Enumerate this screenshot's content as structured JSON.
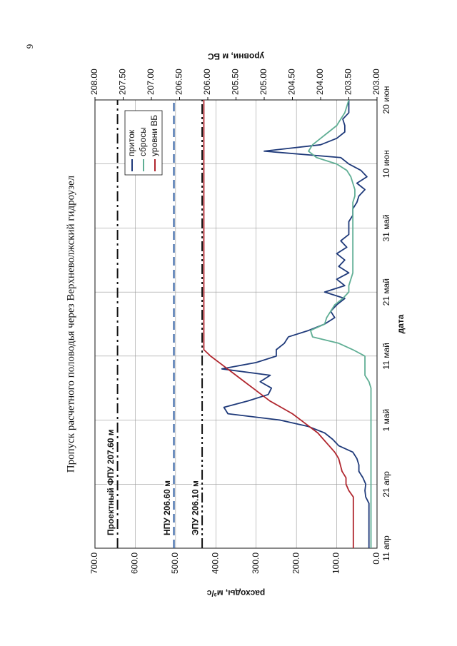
{
  "page_number": "9",
  "chart_data": {
    "type": "line",
    "title": "Пропуск расчетного половодья через Верхневолжский гидроузел",
    "x_label": "дата",
    "y_label": "расходы, м³/с",
    "y2_label": "уровни, м БС",
    "xlim": [
      0,
      70
    ],
    "xticks": [
      {
        "value": 0,
        "label": "11 апр"
      },
      {
        "value": 10,
        "label": "21 апр"
      },
      {
        "value": 20,
        "label": "1 май"
      },
      {
        "value": 30,
        "label": "11 май"
      },
      {
        "value": 40,
        "label": "21 май"
      },
      {
        "value": 50,
        "label": "31 май"
      },
      {
        "value": 60,
        "label": "10 июн"
      },
      {
        "value": 70,
        "label": "20 июн"
      }
    ],
    "ylim": [
      0,
      700
    ],
    "yticks": [
      {
        "value": 0,
        "label": "0.0"
      },
      {
        "value": 100,
        "label": "100.0"
      },
      {
        "value": 200,
        "label": "200.0"
      },
      {
        "value": 300,
        "label": "300.0"
      },
      {
        "value": 400,
        "label": "400.0"
      },
      {
        "value": 500,
        "label": "500.0"
      },
      {
        "value": 600,
        "label": "600.0"
      },
      {
        "value": 700,
        "label": "700.0"
      }
    ],
    "y2lim": [
      203,
      208
    ],
    "y2ticks": [
      {
        "value": 203,
        "label": "203.00"
      },
      {
        "value": 203.5,
        "label": "203.50"
      },
      {
        "value": 204,
        "label": "204.00"
      },
      {
        "value": 204.5,
        "label": "204.50"
      },
      {
        "value": 205,
        "label": "205.00"
      },
      {
        "value": 205.5,
        "label": "205.50"
      },
      {
        "value": 206,
        "label": "206.00"
      },
      {
        "value": 206.5,
        "label": "206.50"
      },
      {
        "value": 207,
        "label": "207.00"
      },
      {
        "value": 207.5,
        "label": "207.50"
      },
      {
        "value": 208,
        "label": "208.00"
      }
    ],
    "grid": true,
    "legend": "upper right",
    "series": [
      {
        "name": "приток",
        "color": "#1f3a7a",
        "x": [
          0,
          7,
          8,
          9,
          10,
          11,
          12,
          13,
          14,
          15,
          16,
          17,
          18,
          19,
          20,
          21,
          22,
          23,
          24,
          25,
          26,
          27,
          28,
          29,
          30,
          31,
          32,
          33,
          34,
          35,
          36,
          37,
          38,
          39,
          40,
          41,
          42,
          43,
          44,
          45,
          46,
          47,
          48,
          49,
          50,
          51,
          52,
          53,
          54,
          55,
          56,
          57,
          58,
          59,
          60,
          61,
          62,
          63,
          64,
          65,
          66,
          67,
          68,
          69,
          70
        ],
        "values": [
          20,
          20,
          28,
          30,
          28,
          35,
          45,
          45,
          50,
          60,
          95,
          110,
          130,
          170,
          240,
          370,
          380,
          320,
          270,
          262,
          290,
          265,
          385,
          300,
          250,
          250,
          230,
          220,
          170,
          130,
          105,
          115,
          100,
          80,
          130,
          80,
          100,
          70,
          95,
          80,
          100,
          75,
          90,
          70,
          70,
          70,
          60,
          60,
          50,
          45,
          30,
          50,
          25,
          40,
          70,
          90,
          280,
          140,
          100,
          80,
          80,
          85,
          70,
          70,
          70
        ]
      },
      {
        "name": "сбросы",
        "color": "#5fae94",
        "x": [
          0,
          25,
          26,
          27,
          28,
          29,
          30,
          31,
          32,
          33,
          34,
          35,
          36,
          37,
          38,
          39,
          40,
          41,
          42,
          43,
          44,
          45,
          46,
          47,
          48,
          49,
          50,
          51,
          52,
          53,
          54,
          55,
          56,
          57,
          58,
          59,
          60,
          61,
          62,
          63,
          64,
          65,
          66,
          67,
          68,
          69,
          70
        ],
        "values": [
          15,
          15,
          20,
          30,
          30,
          30,
          30,
          60,
          95,
          160,
          165,
          130,
          125,
          115,
          105,
          85,
          70,
          70,
          65,
          60,
          60,
          60,
          60,
          60,
          60,
          60,
          60,
          60,
          60,
          60,
          60,
          55,
          55,
          60,
          65,
          75,
          100,
          150,
          170,
          160,
          140,
          120,
          100,
          90,
          80,
          75,
          70
        ]
      },
      {
        "name": "уровни ВБ",
        "color": "#b0262e",
        "axis": "y2",
        "x": [
          0,
          8,
          9,
          10,
          11,
          12,
          13,
          14,
          15,
          16,
          17,
          18,
          19,
          20,
          21,
          22,
          23,
          24,
          25,
          26,
          27,
          28,
          29,
          30,
          31,
          70
        ],
        "values": [
          203.42,
          203.42,
          203.5,
          203.55,
          203.55,
          203.62,
          203.65,
          203.68,
          203.75,
          203.85,
          203.95,
          204.05,
          204.2,
          204.35,
          204.5,
          204.7,
          204.9,
          205.05,
          205.2,
          205.35,
          205.5,
          205.65,
          205.8,
          205.95,
          206.07,
          206.07
        ]
      }
    ],
    "reference_lines": [
      {
        "label": "Проектный ФПУ 207.60 м",
        "value": 207.6,
        "axis": "y2",
        "color": "#111111",
        "style": "dashdot"
      },
      {
        "label": "НПУ 206.60 м",
        "value": 206.6,
        "axis": "y2",
        "color": "#2a5aa0",
        "style": "dashed"
      },
      {
        "label": "ЭПУ 206.10 м",
        "value": 206.1,
        "axis": "y2",
        "color": "#111111",
        "style": "dashdotdot"
      }
    ]
  }
}
